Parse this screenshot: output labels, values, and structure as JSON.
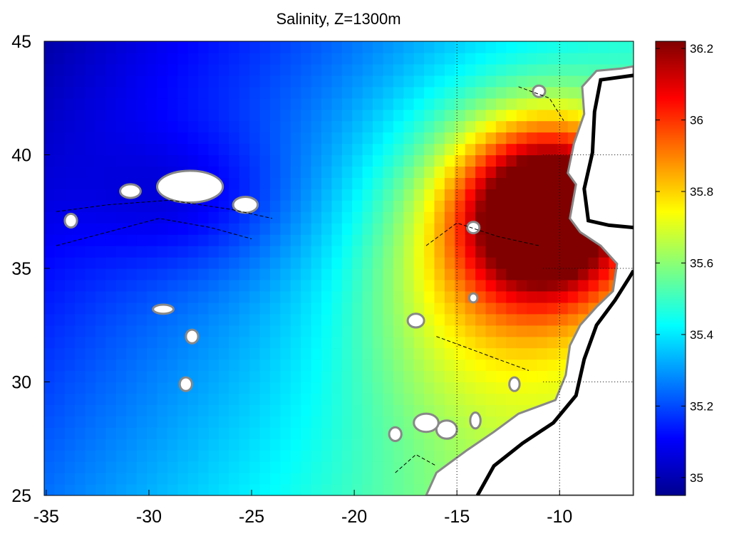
{
  "chart_data": {
    "type": "heatmap",
    "title": "Salinity, Z=1300m",
    "xlabel": "",
    "ylabel": "",
    "xlim": [
      -35.1,
      -6.4
    ],
    "ylim": [
      25,
      45
    ],
    "x_ticks": [
      -35,
      -30,
      -25,
      -20,
      -15,
      -10
    ],
    "y_ticks": [
      25,
      30,
      35,
      40,
      45
    ],
    "x_tick_labels": [
      "-35",
      "-30",
      "-25",
      "-20",
      "-15",
      "-10"
    ],
    "y_tick_labels": [
      "25",
      "30",
      "35",
      "40",
      "45"
    ],
    "colorbar": {
      "range": [
        34.95,
        36.22
      ],
      "ticks": [
        35,
        35.2,
        35.4,
        35.6,
        35.8,
        36,
        36.2
      ],
      "tick_labels": [
        "35",
        "35.2",
        "35.4",
        "35.6",
        "35.8",
        "36",
        "36.2"
      ],
      "colormap": "jet"
    },
    "field": {
      "variable": "salinity",
      "depth_m": 1300,
      "max_core": {
        "lon": -10.5,
        "lat": 37.8,
        "value": 36.2
      },
      "min_region": {
        "lon": -35,
        "lat": 45,
        "value": 34.95
      },
      "landmask": "coast and islands shown white"
    },
    "grid": "dotted grid east of 15W over land"
  }
}
